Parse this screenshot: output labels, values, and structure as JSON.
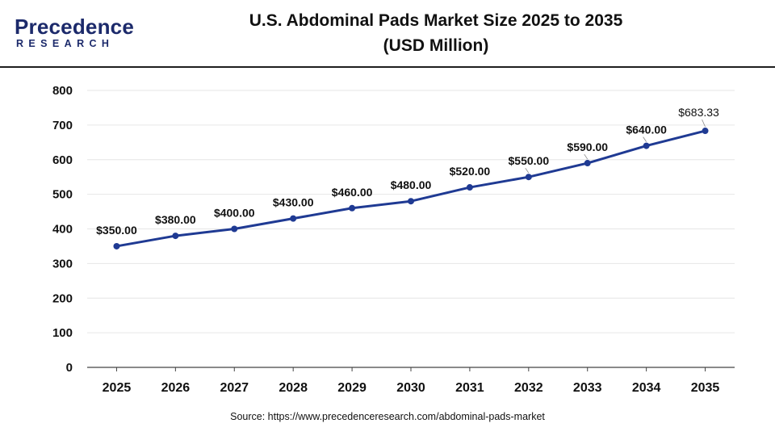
{
  "header": {
    "logo_word": "Precedence",
    "logo_sub": "RESEARCH",
    "title_line1": "U.S. Abdominal Pads Market Size 2025 to 2035",
    "title_line2": "(USD Million)"
  },
  "chart_data": {
    "type": "line",
    "title": "U.S. Abdominal Pads Market Size 2025 to 2035 (USD Million)",
    "categories": [
      "2025",
      "2026",
      "2027",
      "2028",
      "2029",
      "2030",
      "2031",
      "2032",
      "2033",
      "2034",
      "2035"
    ],
    "series": [
      {
        "values": [
          350,
          380,
          400,
          430,
          460,
          480,
          520,
          550,
          590,
          640,
          683.33
        ],
        "labels": [
          "$350.00",
          "$380.00",
          "$400.00",
          "$430.00",
          "$460.00",
          "$480.00",
          "$520.00",
          "$550.00",
          "$590.00",
          "$640.00",
          "$683.33"
        ]
      }
    ],
    "yticks": [
      "0",
      "100",
      "200",
      "300",
      "400",
      "500",
      "600",
      "700",
      "800"
    ],
    "ylim": [
      0,
      800
    ],
    "grid": true,
    "legend": "none",
    "colors": {
      "line": "#1f3a93",
      "marker": "#1f3a93",
      "grid": "#e6e6e6",
      "axis": "#444444",
      "label": "#111111"
    }
  },
  "footer": {
    "source": "Source: https://www.precedenceresearch.com/abdominal-pads-market"
  }
}
